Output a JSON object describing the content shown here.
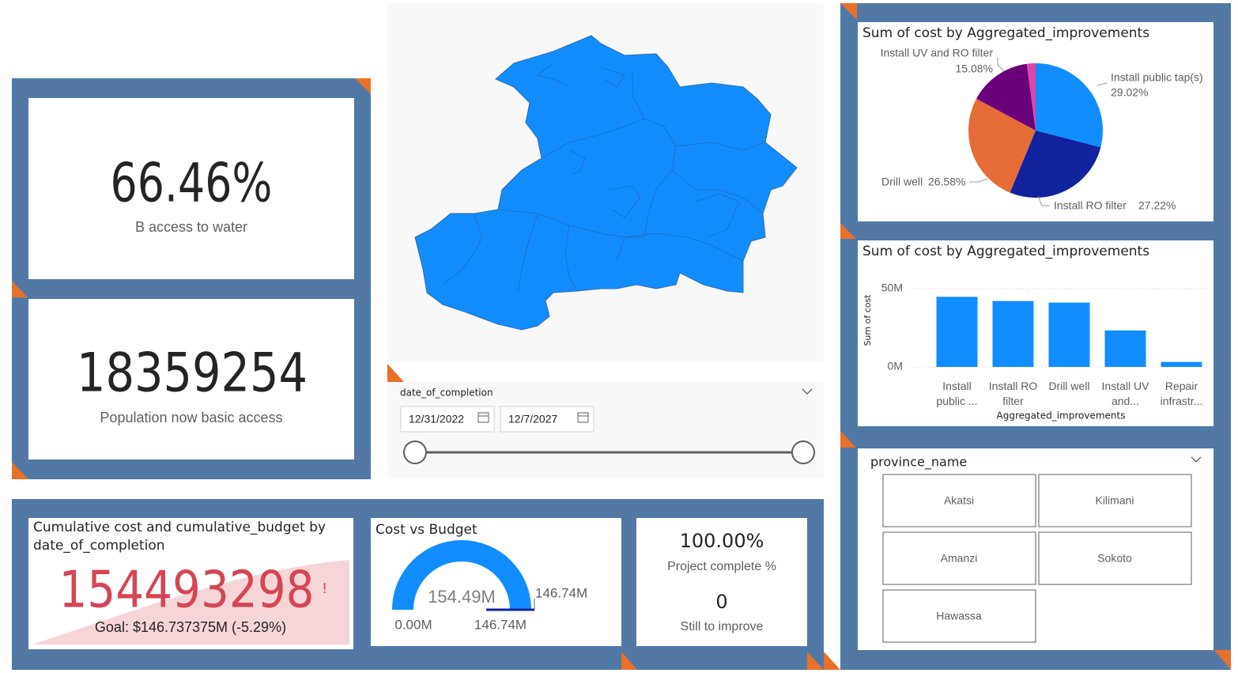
{
  "kpi_access": {
    "value": "66.46%",
    "label": "B access to water"
  },
  "kpi_population": {
    "value": "18359254",
    "label": "Population now basic access"
  },
  "date_slicer": {
    "title": "date_of_completion",
    "start": "12/31/2022",
    "end": "12/7/2027"
  },
  "province_slicer": {
    "title": "province_name",
    "items": [
      "Akatsi",
      "Kilimani",
      "Amanzi",
      "Sokoto",
      "Hawassa"
    ]
  },
  "cumulative_kpi": {
    "title": "Cumulative cost and cumulative_budget by date_of_completion",
    "value": "154493298",
    "goal": "Goal: $146.737375M (-5.29%)"
  },
  "progress_card": {
    "complete": "100.00%",
    "complete_label": "Project complete %",
    "remaining": "0",
    "remaining_label": "Still to improve"
  },
  "chart_data": [
    {
      "type": "pie",
      "title": "Sum of cost by Aggregated_improvements",
      "categories": [
        "Install public tap(s)",
        "Install RO filter",
        "Drill well",
        "Install UV and RO filter",
        null
      ],
      "values": [
        29.02,
        27.22,
        26.58,
        15.08,
        2.1
      ],
      "value_labels": [
        "29.02%",
        "27.22%",
        "26.58%",
        "15.08%",
        null
      ],
      "colors": [
        "#118dff",
        "#12239e",
        "#e66c37",
        "#6b007b",
        "#e044a7"
      ]
    },
    {
      "type": "bar",
      "title": "Sum of cost by Aggregated_improvements",
      "categories": [
        "Install public ...",
        "Install RO filter",
        "Drill well",
        "Install UV and...",
        "Repair infrastr..."
      ],
      "values": [
        44800000,
        42100000,
        41100000,
        23300000,
        3200000
      ],
      "color": "#118dff",
      "xlabel": "Aggregated_improvements",
      "ylabel": "Sum of cost",
      "ylim": [
        0,
        50000000
      ],
      "yticks": [
        {
          "value": 0,
          "label": "0M"
        },
        {
          "value": 50000000,
          "label": "50M"
        }
      ],
      "grid": true
    },
    {
      "type": "gauge",
      "title": "Cost vs Budget",
      "value": {
        "value": 154490000,
        "label": "154.49M"
      },
      "min": {
        "value": 0,
        "label": "0.00M"
      },
      "max": {
        "value": 146740000,
        "label": "146.74M"
      },
      "target": {
        "value": 146740000,
        "label": "146.74M"
      },
      "color": "#118dff",
      "target_color": "#12239e"
    }
  ]
}
